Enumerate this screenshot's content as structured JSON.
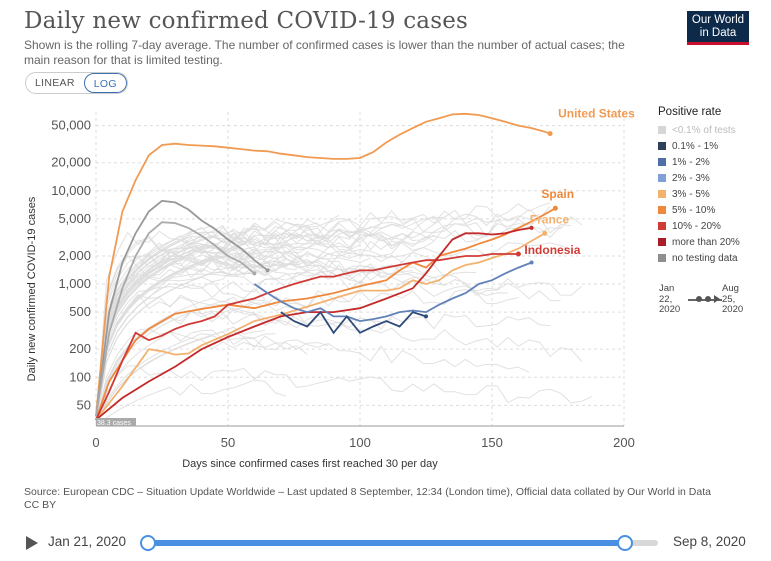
{
  "header": {
    "title": "Daily new confirmed COVID-19 cases",
    "subtitle": "Shown is the rolling 7-day average. The number of confirmed cases is lower than the number of actual cases; the main reason for that is limited testing.",
    "logo_line1": "Our World",
    "logo_line2": "in Data",
    "logo_color": "#0e2a4b",
    "logo_accent": "#c8102e"
  },
  "scale_toggle": {
    "linear_label": "LINEAR",
    "log_label": "LOG",
    "active": "LOG"
  },
  "chart_data": {
    "type": "line",
    "title": "Daily new confirmed COVID-19 cases",
    "xlabel": "Days since confirmed cases first reached 30 per day",
    "ylabel": "Daily new confirmed COVID-19 cases",
    "y_scale": "log",
    "xlim": [
      0,
      200
    ],
    "ylim": [
      30,
      70000
    ],
    "x_ticks": [
      0,
      50,
      100,
      150,
      200
    ],
    "y_ticks": [
      50,
      100,
      200,
      500,
      1000,
      2000,
      5000,
      10000,
      20000,
      50000
    ],
    "y_tick_labels": [
      "50",
      "100",
      "200",
      "500",
      "1,000",
      "2,000",
      "5,000",
      "10,000",
      "20,000",
      "50,000"
    ],
    "grid": true,
    "start_annotation": "38.3 cases",
    "series": [
      {
        "name": "United States",
        "color": "#f19a52",
        "labeled": true,
        "x": [
          0,
          5,
          10,
          15,
          20,
          25,
          30,
          35,
          40,
          45,
          50,
          55,
          60,
          65,
          70,
          75,
          80,
          85,
          90,
          95,
          100,
          105,
          110,
          115,
          120,
          125,
          130,
          135,
          140,
          145,
          150,
          155,
          160,
          165,
          170,
          172
        ],
        "y": [
          38,
          1200,
          6000,
          13000,
          24000,
          31000,
          32000,
          31000,
          30500,
          30000,
          29000,
          28000,
          27000,
          26500,
          25000,
          24000,
          23000,
          22500,
          22000,
          22000,
          22500,
          26000,
          33000,
          40000,
          47000,
          55000,
          60000,
          66000,
          67000,
          65000,
          60000,
          55000,
          50000,
          47000,
          43000,
          41000
        ]
      },
      {
        "name": "Spain",
        "color": "#f0883c",
        "labeled": true,
        "x": [
          0,
          5,
          10,
          15,
          20,
          30,
          40,
          50,
          60,
          70,
          80,
          90,
          100,
          110,
          115,
          120,
          125,
          130,
          135,
          140,
          145,
          150,
          155,
          160,
          165,
          170,
          174
        ],
        "y": [
          35,
          90,
          150,
          250,
          330,
          480,
          540,
          600,
          550,
          650,
          700,
          800,
          950,
          1100,
          1400,
          1700,
          1500,
          2000,
          2200,
          2400,
          2700,
          3000,
          3400,
          4000,
          4700,
          5600,
          6500
        ]
      },
      {
        "name": "France",
        "color": "#f3b170",
        "labeled": true,
        "x": [
          0,
          10,
          20,
          25,
          30,
          35,
          40,
          50,
          60,
          70,
          80,
          90,
          100,
          110,
          115,
          120,
          125,
          130,
          135,
          140,
          145,
          150,
          155,
          160,
          165,
          170
        ],
        "y": [
          35,
          80,
          200,
          190,
          175,
          180,
          220,
          290,
          400,
          470,
          570,
          700,
          850,
          850,
          900,
          1100,
          1000,
          1100,
          1400,
          1600,
          1700,
          1900,
          2100,
          2400,
          2900,
          3500
        ]
      },
      {
        "name": "Indonesia",
        "color": "#d03b36",
        "labeled": true,
        "x": [
          0,
          5,
          10,
          15,
          20,
          25,
          30,
          35,
          40,
          45,
          50,
          55,
          60,
          65,
          70,
          75,
          80,
          85,
          90,
          95,
          100,
          105,
          110,
          115,
          120,
          125,
          130,
          135,
          140,
          145,
          150,
          155,
          160
        ],
        "y": [
          35,
          70,
          150,
          300,
          250,
          280,
          330,
          370,
          400,
          450,
          600,
          650,
          700,
          800,
          900,
          1000,
          1100,
          1200,
          1200,
          1300,
          1400,
          1400,
          1500,
          1600,
          1700,
          1800,
          1800,
          1900,
          2000,
          2000,
          2100,
          2100,
          2100
        ]
      },
      {
        "name": "",
        "color": "#c42a2a",
        "labeled": false,
        "x": [
          0,
          10,
          20,
          30,
          40,
          50,
          60,
          70,
          80,
          90,
          100,
          110,
          120,
          125,
          130,
          135,
          140,
          145,
          150,
          155,
          160,
          165
        ],
        "y": [
          35,
          60,
          90,
          130,
          200,
          270,
          350,
          450,
          500,
          500,
          550,
          700,
          900,
          1300,
          2000,
          3000,
          3500,
          3500,
          3400,
          3500,
          3800,
          4000
        ]
      },
      {
        "name": "",
        "color": "#999999",
        "labeled": false,
        "x": [
          0,
          5,
          10,
          15,
          20,
          25,
          30,
          35,
          40,
          45,
          50,
          55,
          60,
          65
        ],
        "y": [
          38,
          500,
          1700,
          3500,
          6000,
          7800,
          7500,
          6300,
          4800,
          3900,
          3000,
          2400,
          1800,
          1400
        ]
      },
      {
        "name": "",
        "color": "#aaaaaa",
        "labeled": false,
        "x": [
          0,
          5,
          10,
          15,
          20,
          25,
          30,
          35,
          40,
          45,
          50,
          55,
          60
        ],
        "y": [
          38,
          300,
          900,
          2000,
          3500,
          4600,
          4500,
          4000,
          3300,
          2600,
          2000,
          1700,
          1300
        ]
      },
      {
        "name": "",
        "color": "#6181b9",
        "labeled": false,
        "x": [
          60,
          65,
          70,
          75,
          80,
          85,
          90,
          95,
          100,
          105,
          110,
          115,
          120,
          125,
          130,
          135,
          140,
          145,
          150,
          155,
          160,
          165
        ],
        "y": [
          1000,
          800,
          650,
          550,
          500,
          550,
          450,
          450,
          400,
          420,
          450,
          500,
          520,
          500,
          600,
          700,
          800,
          1000,
          1100,
          1300,
          1500,
          1700
        ]
      },
      {
        "name": "",
        "color": "#2f4b7c",
        "labeled": false,
        "x": [
          70,
          75,
          80,
          85,
          90,
          95,
          100,
          105,
          110,
          115,
          120,
          125
        ],
        "y": [
          500,
          400,
          350,
          500,
          300,
          450,
          300,
          350,
          400,
          350,
          500,
          450
        ]
      }
    ],
    "background_series_color": "#dcdcdc"
  },
  "legend": {
    "title": "Positive rate",
    "items": [
      {
        "label": "<0.1% of tests",
        "color": "#d6d6d6",
        "muted": true
      },
      {
        "label": "0.1% - 1%",
        "color": "#2f3f5c"
      },
      {
        "label": "1% - 2%",
        "color": "#4f6fa8"
      },
      {
        "label": "2% - 3%",
        "color": "#7fa1d6"
      },
      {
        "label": "3% - 5%",
        "color": "#f3b170"
      },
      {
        "label": "5% - 10%",
        "color": "#f0883c"
      },
      {
        "label": "10% - 20%",
        "color": "#d03b36"
      },
      {
        "label": "more than 20%",
        "color": "#a81d27"
      },
      {
        "label": "no testing data",
        "color": "#8f8f8f"
      }
    ]
  },
  "mini_timeline": {
    "start_line1": "Jan",
    "start_line2": "22,",
    "start_line3": "2020",
    "end_line1": "Aug",
    "end_line2": "25,",
    "end_line3": "2020"
  },
  "source": {
    "text": "Source: European CDC – Situation Update Worldwide – Last updated 8 September, 12:34 (London time), Official data collated by Our World in Data",
    "license": "CC BY"
  },
  "timeline": {
    "start_label": "Jan 21, 2020",
    "end_label": "Sep 8, 2020",
    "start_fraction": 0,
    "end_fraction": 0.935
  }
}
